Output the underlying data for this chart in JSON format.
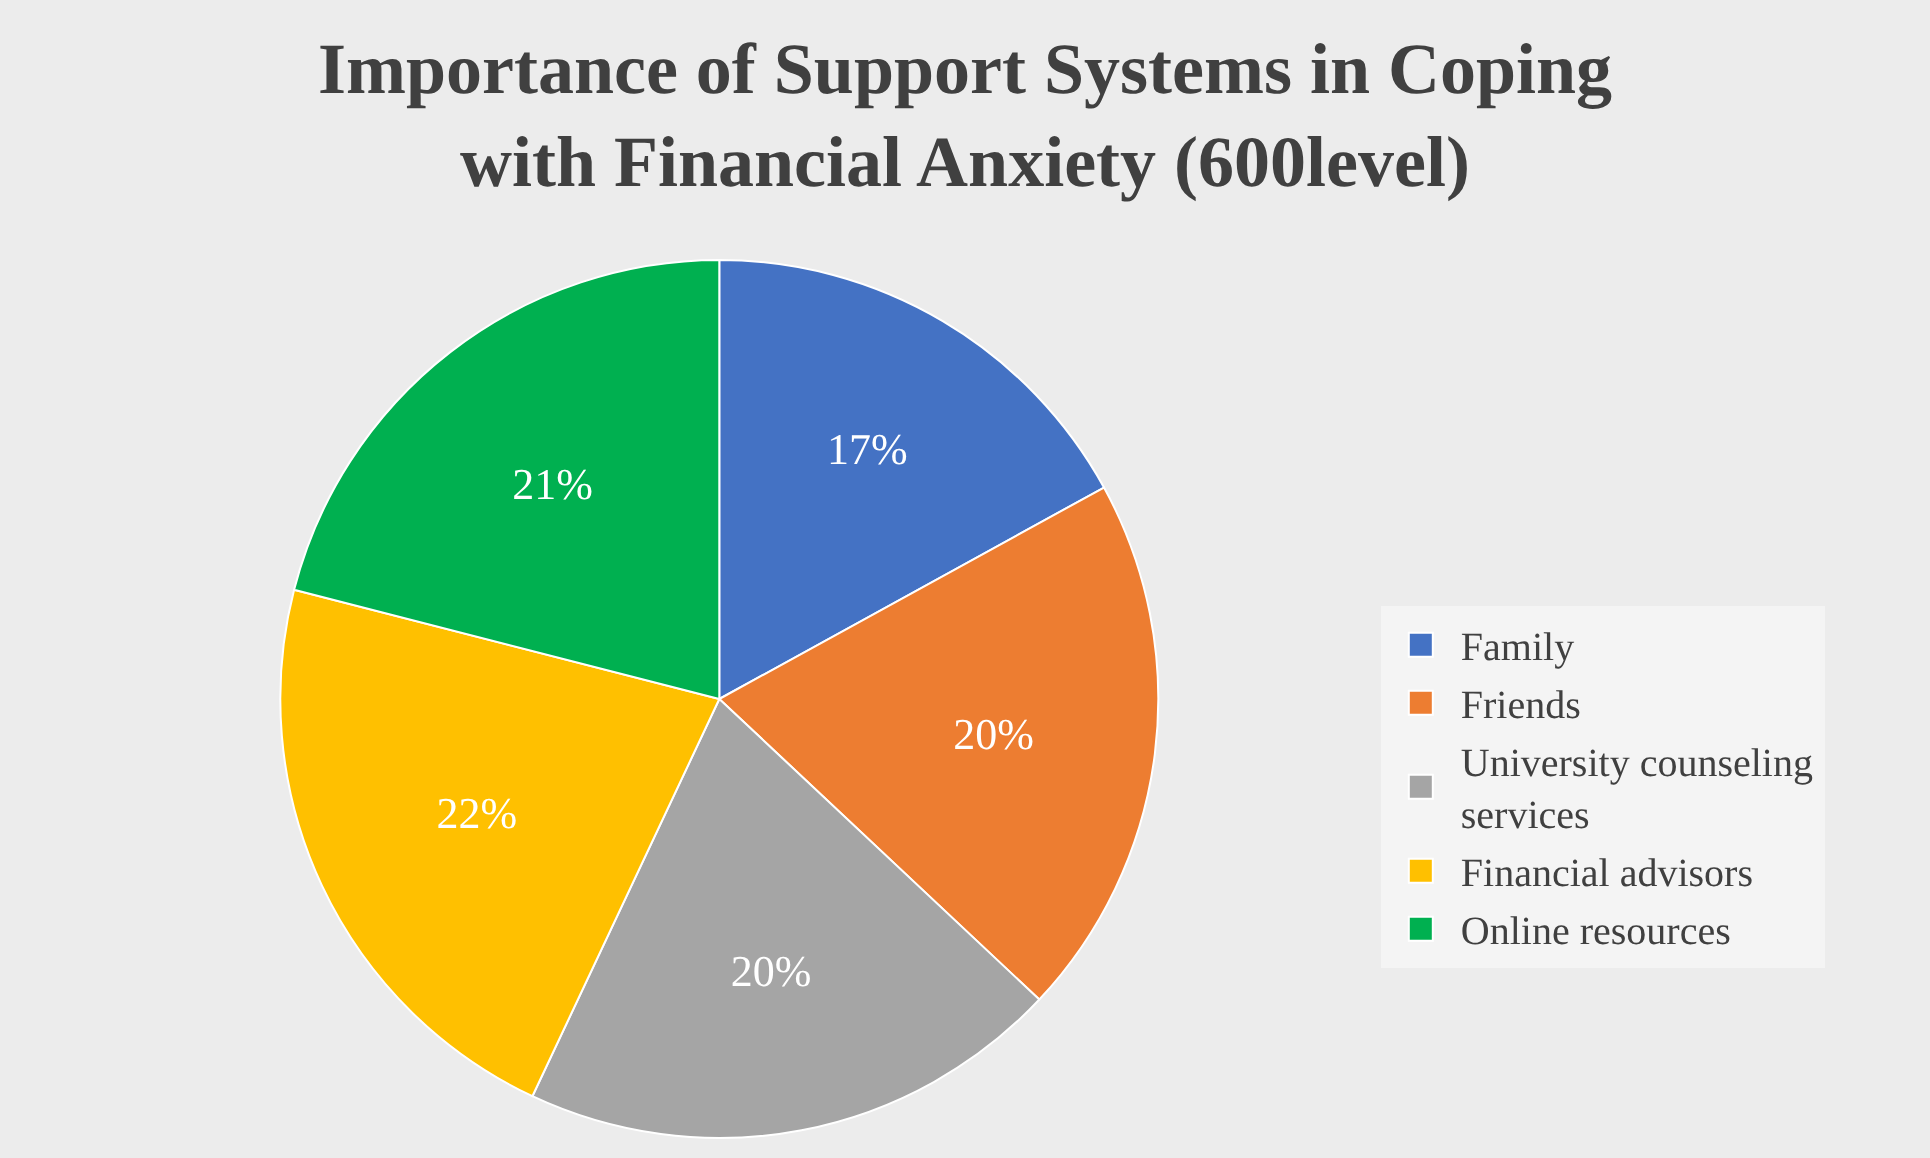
{
  "chart_data": {
    "type": "pie",
    "title": "Importance of Support Systems in Coping with Financial Anxiety (600level)",
    "categories": [
      "Family",
      "Friends",
      "University counseling services",
      "Financial advisors",
      "Online resources"
    ],
    "values": [
      17,
      20,
      20,
      22,
      21
    ],
    "value_labels": [
      "17%",
      "20%",
      "20%",
      "22%",
      "21%"
    ],
    "colors": [
      "#4472c4",
      "#ed7d31",
      "#a5a5a5",
      "#ffc000",
      "#00b050"
    ],
    "legend": "right"
  }
}
